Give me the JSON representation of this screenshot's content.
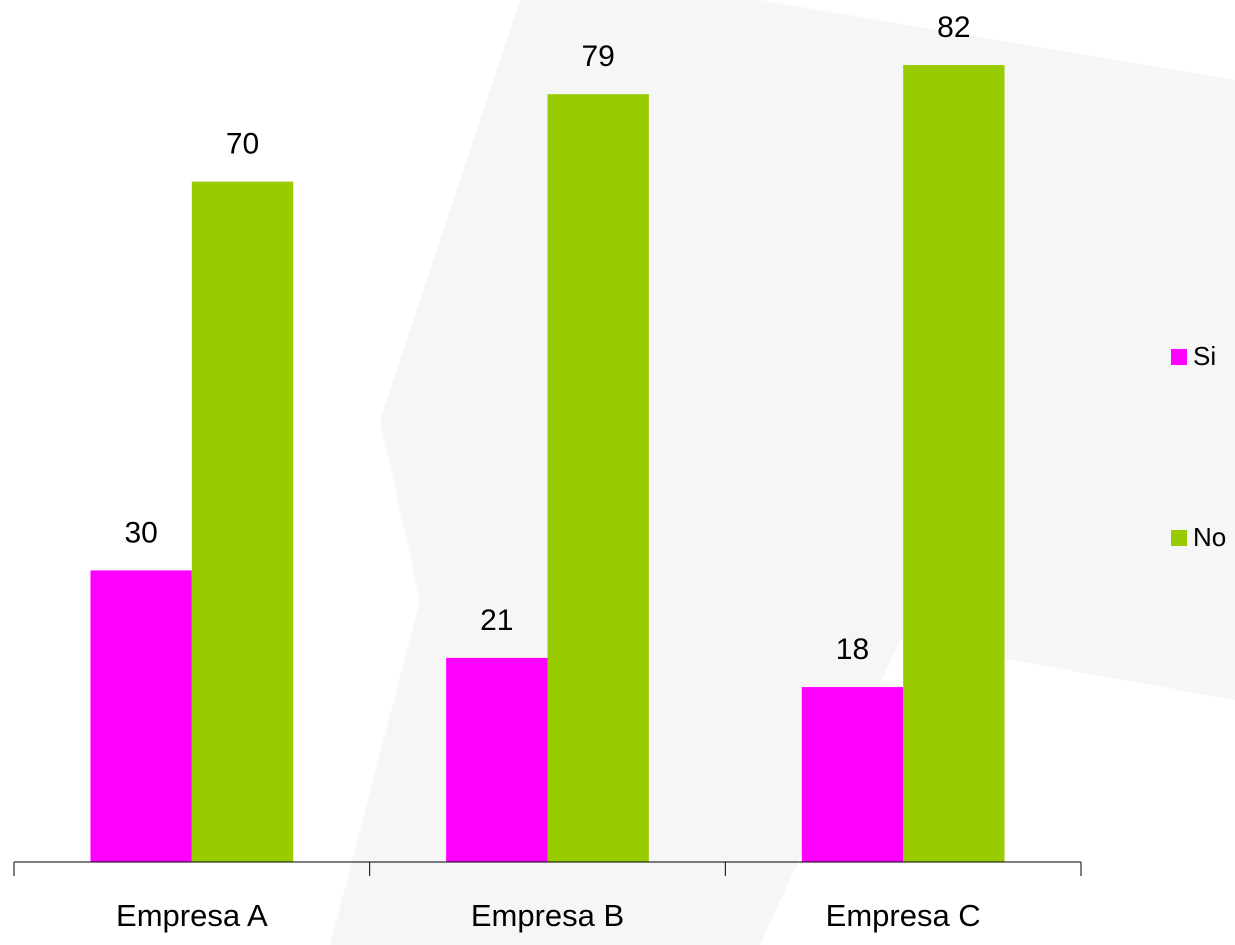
{
  "chart_data": {
    "type": "bar",
    "categories": [
      "Empresa A",
      "Empresa B",
      "Empresa C"
    ],
    "series": [
      {
        "name": "Si",
        "color": "#ff00ff",
        "values": [
          30,
          21,
          18
        ]
      },
      {
        "name": "No",
        "color": "#99cc00",
        "values": [
          70,
          79,
          82
        ]
      }
    ],
    "legend": "right"
  }
}
